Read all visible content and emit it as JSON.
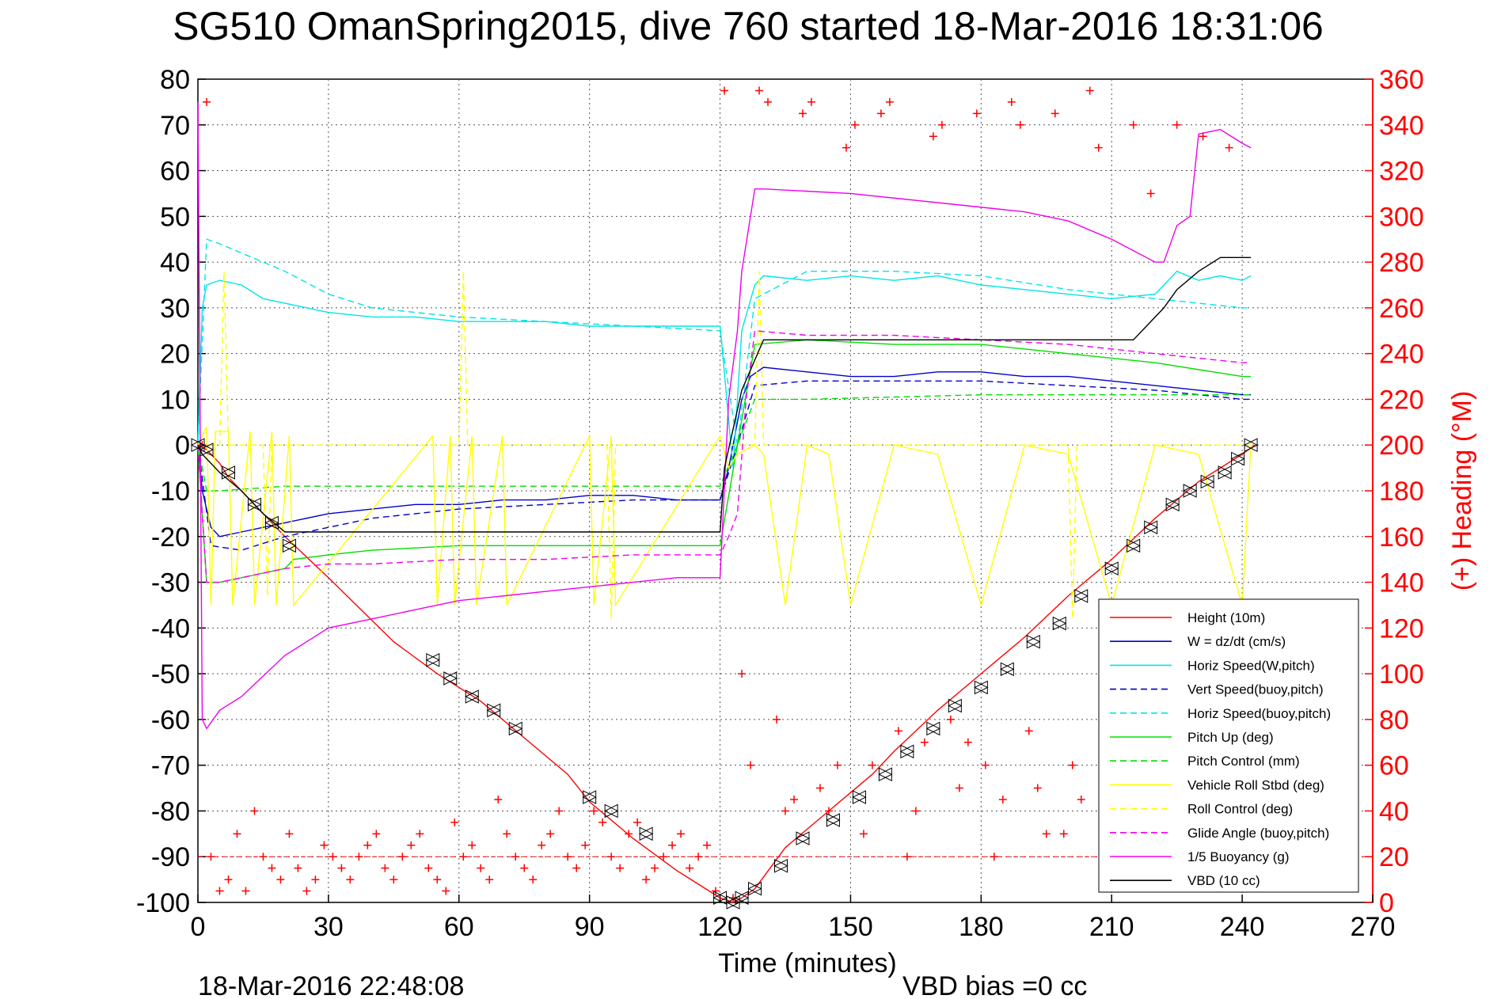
{
  "chart_data": {
    "type": "line",
    "title": "SG510 OmanSpring2015, dive 760 started 18-Mar-2016 18:31:06",
    "xlabel": "Time (minutes)",
    "ylabel": "",
    "y2label": "(+) Heading (°M)",
    "footer_left": "18-Mar-2016 22:48:08",
    "footer_right": "VBD bias =0 cc",
    "xlim": [
      0,
      270
    ],
    "ylim": [
      -100,
      80
    ],
    "y2lim": [
      0,
      360
    ],
    "xticks": [
      "0",
      "30",
      "60",
      "90",
      "120",
      "150",
      "180",
      "210",
      "240",
      "270"
    ],
    "yticks": [
      "-100",
      "-90",
      "-80",
      "-70",
      "-60",
      "-50",
      "-40",
      "-30",
      "-20",
      "-10",
      "0",
      "10",
      "20",
      "30",
      "40",
      "50",
      "60",
      "70",
      "80"
    ],
    "y2ticks": [
      "0",
      "20",
      "40",
      "60",
      "80",
      "100",
      "120",
      "140",
      "160",
      "180",
      "200",
      "220",
      "240",
      "260",
      "280",
      "300",
      "320",
      "340",
      "360"
    ],
    "grid": true,
    "legend_position": "lower-right",
    "colors": {
      "red": "#ff0000",
      "blue": "#0000cc",
      "cyan": "#00e5e5",
      "green": "#00dd00",
      "yellow": "#ffff00",
      "magenta": "#ee00ee",
      "black": "#000000"
    },
    "series": [
      {
        "name": "Height (10m)",
        "color": "red",
        "dash": "solid",
        "axis": "left",
        "x": [
          0,
          2,
          5,
          7,
          10,
          15,
          20,
          30,
          45,
          55,
          65,
          75,
          85,
          90,
          100,
          110,
          120,
          123,
          125,
          128,
          135,
          145,
          155,
          160,
          170,
          180,
          190,
          200,
          210,
          220,
          230,
          235,
          240,
          243
        ],
        "y": [
          0,
          -1,
          -4,
          -7,
          -10,
          -15,
          -20,
          -29,
          -43,
          -50,
          -56,
          -64,
          -72,
          -78,
          -86,
          -93,
          -99,
          -100,
          -99,
          -97,
          -88,
          -80,
          -72,
          -67,
          -58,
          -50,
          -42,
          -33,
          -25,
          -16,
          -8,
          -5,
          -2,
          0
        ]
      },
      {
        "name": "W = dz/dt (cm/s)",
        "color": "blue",
        "dash": "solid",
        "axis": "left",
        "x": [
          0,
          1,
          3,
          5,
          10,
          15,
          20,
          30,
          40,
          50,
          60,
          70,
          80,
          90,
          100,
          110,
          120,
          122,
          125,
          127,
          130,
          140,
          150,
          160,
          170,
          180,
          190,
          200,
          210,
          220,
          230,
          240,
          242
        ],
        "y": [
          0,
          -10,
          -18,
          -20,
          -19,
          -18,
          -17,
          -15,
          -14,
          -13,
          -13,
          -12,
          -12,
          -11,
          -11,
          -12,
          -12,
          -5,
          10,
          15,
          17,
          16,
          15,
          15,
          16,
          16,
          15,
          15,
          14,
          13,
          12,
          11,
          11
        ]
      },
      {
        "name": "Horiz Speed(W,pitch)",
        "color": "cyan",
        "dash": "solid",
        "axis": "left",
        "x": [
          0,
          1,
          2,
          5,
          10,
          15,
          20,
          30,
          40,
          50,
          60,
          70,
          80,
          90,
          100,
          110,
          120,
          123,
          125,
          128,
          130,
          140,
          150,
          160,
          170,
          180,
          190,
          200,
          210,
          220,
          225,
          230,
          235,
          240,
          242
        ],
        "y": [
          0,
          30,
          35,
          36,
          35,
          32,
          31,
          29,
          28,
          28,
          27,
          27,
          27,
          26,
          26,
          26,
          26,
          -5,
          25,
          35,
          37,
          36,
          37,
          36,
          37,
          35,
          34,
          33,
          32,
          33,
          38,
          36,
          37,
          36,
          37
        ]
      },
      {
        "name": "Vert Speed(buoy,pitch)",
        "color": "blue",
        "dash": "dashed",
        "axis": "left",
        "x": [
          0,
          3,
          10,
          20,
          40,
          60,
          80,
          100,
          120,
          124,
          128,
          140,
          160,
          180,
          200,
          220,
          240,
          242
        ],
        "y": [
          0,
          -22,
          -23,
          -20,
          -16,
          -14,
          -13,
          -12,
          -12,
          0,
          13,
          14,
          14,
          14,
          13,
          12,
          10,
          10
        ]
      },
      {
        "name": "Horiz Speed(buoy,pitch)",
        "color": "cyan",
        "dash": "dashed",
        "axis": "left",
        "x": [
          0,
          2,
          5,
          10,
          20,
          30,
          40,
          60,
          80,
          100,
          120,
          124,
          128,
          140,
          160,
          180,
          200,
          220,
          240,
          242
        ],
        "y": [
          0,
          45,
          44,
          42,
          38,
          33,
          30,
          28,
          27,
          26,
          25,
          0,
          32,
          38,
          38,
          37,
          34,
          32,
          30,
          30
        ]
      },
      {
        "name": "Pitch Up (deg)",
        "color": "green",
        "dash": "solid",
        "axis": "left",
        "x": [
          0,
          2,
          5,
          10,
          20,
          22,
          30,
          40,
          60,
          80,
          100,
          120,
          124,
          128,
          140,
          160,
          180,
          200,
          220,
          240,
          242
        ],
        "y": [
          0,
          -30,
          -30,
          -29,
          -27,
          -25,
          -24,
          -23,
          -22,
          -22,
          -22,
          -22,
          0,
          22,
          23,
          22,
          22,
          20,
          18,
          15,
          15
        ]
      },
      {
        "name": "Pitch Control (mm)",
        "color": "green",
        "dash": "dashed",
        "axis": "left",
        "x": [
          0,
          2,
          5,
          20,
          60,
          120,
          124,
          128,
          140,
          180,
          220,
          242
        ],
        "y": [
          0,
          -10,
          -10,
          -9,
          -9,
          -9,
          0,
          10,
          10,
          11,
          11,
          11
        ]
      },
      {
        "name": "Vehicle Roll Stbd (deg)",
        "color": "yellow",
        "dash": "solid",
        "axis": "left",
        "x": [
          0,
          2,
          3,
          4,
          5,
          7,
          8,
          12,
          13,
          17,
          18,
          21,
          22,
          54,
          55,
          58,
          59,
          63,
          64,
          70,
          71,
          90,
          91,
          95,
          96,
          120,
          122,
          124,
          128,
          130,
          135,
          140,
          145,
          150,
          160,
          170,
          180,
          190,
          200,
          210,
          220,
          230,
          240,
          242
        ],
        "y": [
          0,
          4,
          -35,
          3,
          3,
          3,
          -35,
          3,
          -35,
          3,
          -35,
          2,
          -35,
          2,
          -35,
          2,
          -35,
          2,
          -35,
          2,
          -35,
          2,
          -35,
          2,
          -35,
          2,
          -5,
          -2,
          0,
          -2,
          -35,
          0,
          -2,
          -35,
          0,
          -2,
          -35,
          0,
          -2,
          -35,
          0,
          -2,
          -35,
          0
        ]
      },
      {
        "name": "Roll Control (deg)",
        "color": "yellow",
        "dash": "dashed",
        "axis": "left",
        "x": [
          0,
          5,
          6,
          7,
          15,
          16,
          17,
          60,
          61,
          62,
          94,
          95,
          96,
          124,
          128,
          129,
          130,
          200,
          201,
          202,
          242
        ],
        "y": [
          0,
          0,
          38,
          0,
          0,
          -33,
          0,
          0,
          38,
          0,
          0,
          -38,
          0,
          0,
          0,
          38,
          0,
          0,
          -38,
          0,
          0
        ]
      },
      {
        "name": "Glide Angle (buoy,pitch)",
        "color": "magenta",
        "dash": "dashed",
        "axis": "left",
        "x": [
          0,
          2,
          5,
          10,
          20,
          30,
          40,
          60,
          80,
          100,
          120,
          122,
          124,
          126,
          128,
          140,
          160,
          180,
          200,
          220,
          240,
          242
        ],
        "y": [
          0,
          -30,
          -30,
          -29,
          -27,
          -26,
          -26,
          -25,
          -25,
          -24,
          -24,
          -20,
          -15,
          10,
          25,
          24,
          24,
          23,
          22,
          20,
          18,
          18
        ]
      },
      {
        "name": "1/5 Buoyancy (g)",
        "color": "magenta",
        "dash": "solid",
        "axis": "left",
        "x": [
          0,
          1,
          2,
          5,
          10,
          20,
          30,
          40,
          50,
          60,
          70,
          80,
          90,
          100,
          110,
          120,
          122,
          124,
          125,
          128,
          130,
          150,
          170,
          190,
          200,
          210,
          220,
          222,
          225,
          228,
          230,
          235,
          240,
          242
        ],
        "y": [
          75,
          -60,
          -62,
          -58,
          -55,
          -46,
          -40,
          -38,
          -36,
          -34,
          -33,
          -32,
          -31,
          -30,
          -29,
          -29,
          10,
          25,
          38,
          56,
          56,
          55,
          53,
          51,
          49,
          45,
          40,
          40,
          48,
          50,
          68,
          69,
          66,
          65
        ]
      },
      {
        "name": "VBD (10 cc)",
        "color": "black",
        "dash": "solid",
        "axis": "left",
        "x": [
          0,
          1,
          5,
          10,
          15,
          20,
          25,
          30,
          60,
          90,
          120,
          121,
          125,
          130,
          140,
          160,
          180,
          200,
          215,
          218,
          222,
          225,
          230,
          235,
          242
        ],
        "y": [
          0,
          -2,
          -6,
          -10,
          -15,
          -19,
          -19,
          -19,
          -19,
          -19,
          -19,
          -5,
          12,
          23,
          23,
          23,
          23,
          23,
          23,
          26,
          30,
          34,
          38,
          41,
          41
        ]
      }
    ],
    "extra": {
      "heading_reference_level": 20,
      "vbd_markers_x": [
        0,
        2,
        7,
        13,
        17,
        21,
        54,
        58,
        63,
        68,
        73,
        90,
        95,
        103,
        120,
        123,
        125,
        128,
        134,
        139,
        146,
        152,
        158,
        163,
        169,
        174,
        180,
        186,
        192,
        198,
        203,
        210,
        215,
        219,
        224,
        228,
        232,
        236,
        239,
        242
      ],
      "vbd_markers_y": [
        0,
        -1,
        -6,
        -13,
        -17,
        -22,
        -47,
        -51,
        -55,
        -58,
        -62,
        -77,
        -80,
        -85,
        -99,
        -100,
        -99,
        -97,
        -92,
        -86,
        -82,
        -77,
        -72,
        -67,
        -62,
        -57,
        -53,
        -49,
        -43,
        -39,
        -33,
        -27,
        -22,
        -18,
        -13,
        -10,
        -8,
        -6,
        -3,
        0
      ],
      "heading_x": [
        1,
        2,
        3,
        5,
        7,
        9,
        11,
        13,
        15,
        17,
        19,
        21,
        23,
        25,
        27,
        29,
        31,
        33,
        35,
        37,
        39,
        41,
        43,
        45,
        47,
        49,
        51,
        53,
        55,
        57,
        59,
        61,
        63,
        65,
        67,
        69,
        71,
        73,
        75,
        77,
        79,
        81,
        83,
        85,
        87,
        89,
        91,
        93,
        95,
        97,
        99,
        101,
        103,
        105,
        107,
        109,
        111,
        113,
        115,
        117,
        119,
        121,
        123,
        125,
        127,
        129,
        131,
        133,
        135,
        137,
        139,
        141,
        143,
        145,
        147,
        149,
        151,
        153,
        155,
        157,
        159,
        161,
        163,
        165,
        167,
        169,
        171,
        173,
        175,
        177,
        179,
        181,
        183,
        185,
        187,
        189,
        191,
        193,
        195,
        197,
        199,
        201,
        203,
        205,
        207,
        209,
        211,
        213,
        215,
        217,
        219,
        221,
        223,
        225,
        227,
        229,
        231,
        233,
        235,
        237,
        239,
        241
      ],
      "heading_y": [
        200,
        350,
        20,
        5,
        10,
        30,
        5,
        40,
        20,
        15,
        10,
        30,
        15,
        5,
        10,
        25,
        20,
        15,
        10,
        20,
        25,
        30,
        15,
        10,
        20,
        25,
        30,
        15,
        10,
        5,
        35,
        20,
        25,
        15,
        10,
        45,
        30,
        20,
        15,
        10,
        25,
        30,
        40,
        20,
        15,
        25,
        40,
        35,
        20,
        15,
        30,
        35,
        10,
        15,
        20,
        25,
        30,
        15,
        20,
        25,
        5,
        355,
        2,
        100,
        60,
        355,
        350,
        80,
        40,
        45,
        345,
        350,
        50,
        40,
        60,
        330,
        340,
        30,
        60,
        345,
        350,
        75,
        20,
        40,
        70,
        335,
        340,
        80,
        50,
        70,
        345,
        60,
        20,
        45,
        350,
        340,
        75,
        50,
        30,
        345,
        30,
        60,
        45,
        355,
        330,
        70,
        40,
        50,
        340,
        55,
        310,
        60,
        30,
        340,
        55,
        35,
        335,
        20,
        30,
        330
      ]
    }
  }
}
